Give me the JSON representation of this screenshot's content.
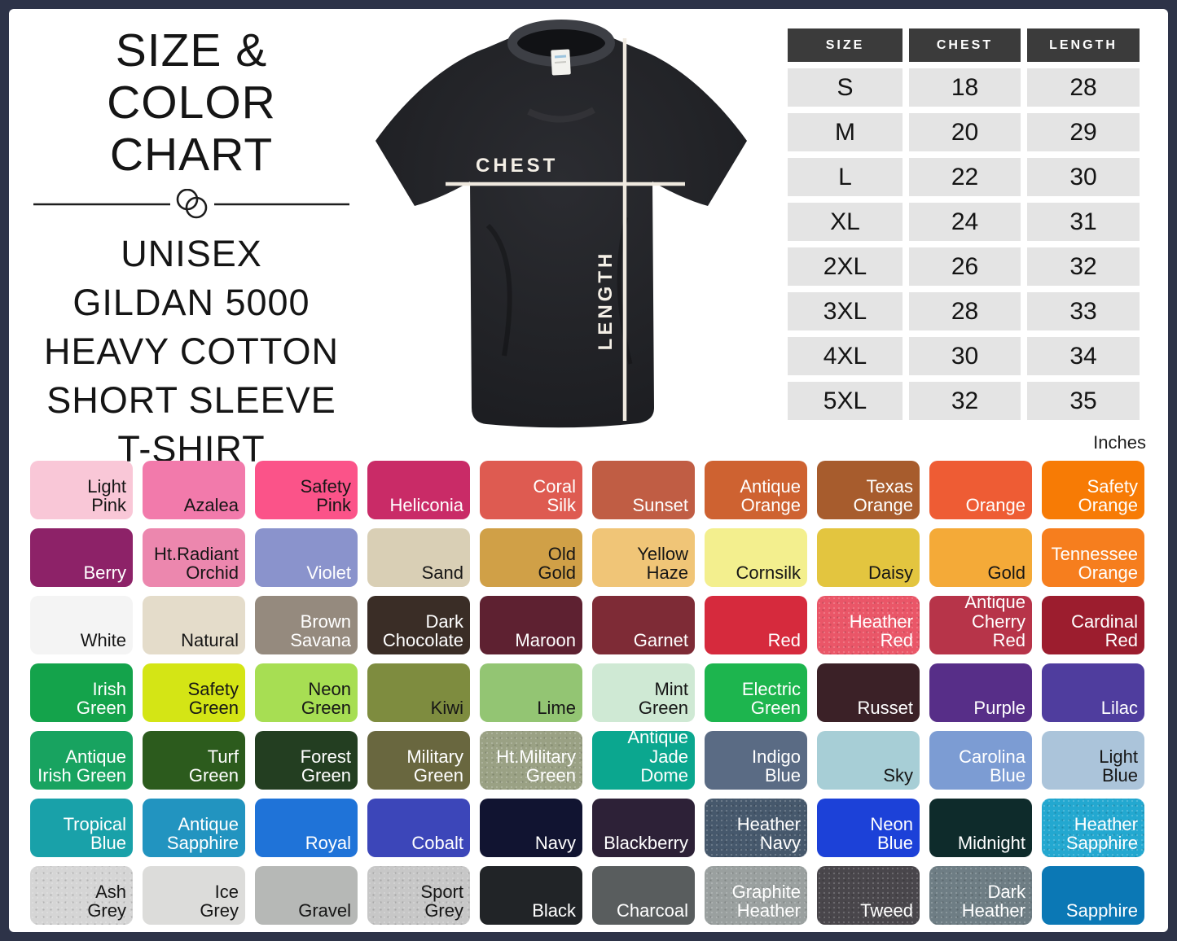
{
  "theme": {
    "frame_bg": "#2d3348",
    "table_header_bg": "#3b3b3b",
    "table_header_text": "#ffffff",
    "table_cell_bg": "#e4e4e4",
    "table_cell_text": "#141414",
    "swatch_text_dark": "#161616",
    "swatch_text_light": "#ffffff",
    "shirt_color": "#212226",
    "measure_line": "#efe9df"
  },
  "header": {
    "title_line1": "SIZE & COLOR",
    "title_line2": "CHART",
    "subtitle_lines": [
      "UNISEX",
      "GILDAN 5000",
      "HEAVY COTTON",
      "SHORT SLEEVE",
      "T-SHIRT"
    ]
  },
  "shirt_diagram": {
    "chest_label": "CHEST",
    "length_label": "LENGTH"
  },
  "size_table": {
    "headers": [
      "SIZE",
      "CHEST",
      "LENGTH"
    ],
    "rows": [
      [
        "S",
        "18",
        "28"
      ],
      [
        "M",
        "20",
        "29"
      ],
      [
        "L",
        "22",
        "30"
      ],
      [
        "XL",
        "24",
        "31"
      ],
      [
        "2XL",
        "26",
        "32"
      ],
      [
        "3XL",
        "28",
        "33"
      ],
      [
        "4XL",
        "30",
        "34"
      ],
      [
        "5XL",
        "32",
        "35"
      ]
    ],
    "unit_label": "Inches"
  },
  "color_chart": {
    "swatches": [
      {
        "name": "Light\nPink",
        "hex": "#f9c7d7",
        "text": "dark",
        "heather": false
      },
      {
        "name": "Azalea",
        "hex": "#f27aab",
        "text": "dark",
        "heather": false
      },
      {
        "name": "Safety\nPink",
        "hex": "#fb5389",
        "text": "dark",
        "heather": false
      },
      {
        "name": "Heliconia",
        "hex": "#c92b67",
        "text": "light",
        "heather": false
      },
      {
        "name": "Coral\nSilk",
        "hex": "#de5b51",
        "text": "light",
        "heather": false
      },
      {
        "name": "Sunset",
        "hex": "#c05d44",
        "text": "light",
        "heather": false
      },
      {
        "name": "Antique\nOrange",
        "hex": "#ce6231",
        "text": "light",
        "heather": false
      },
      {
        "name": "Texas\nOrange",
        "hex": "#a75c2d",
        "text": "light",
        "heather": false
      },
      {
        "name": "Orange",
        "hex": "#ee5c34",
        "text": "light",
        "heather": false
      },
      {
        "name": "Safety\nOrange",
        "hex": "#f77b05",
        "text": "light",
        "heather": false
      },
      {
        "name": "Berry",
        "hex": "#8d2268",
        "text": "light",
        "heather": false
      },
      {
        "name": "Ht.Radiant\nOrchid",
        "hex": "#ec87ae",
        "text": "dark",
        "heather": false
      },
      {
        "name": "Violet",
        "hex": "#8a93cc",
        "text": "light",
        "heather": false
      },
      {
        "name": "Sand",
        "hex": "#d9cfb5",
        "text": "dark",
        "heather": false
      },
      {
        "name": "Old\nGold",
        "hex": "#d0a047",
        "text": "dark",
        "heather": false
      },
      {
        "name": "Yellow\nHaze",
        "hex": "#f0c577",
        "text": "dark",
        "heather": false
      },
      {
        "name": "Cornsilk",
        "hex": "#f3ef8e",
        "text": "dark",
        "heather": false
      },
      {
        "name": "Daisy",
        "hex": "#e3c53f",
        "text": "dark",
        "heather": false
      },
      {
        "name": "Gold",
        "hex": "#f4aa38",
        "text": "dark",
        "heather": false
      },
      {
        "name": "Tennessee\nOrange",
        "hex": "#f67e1e",
        "text": "light",
        "heather": false
      },
      {
        "name": "White",
        "hex": "#f4f4f4",
        "text": "dark",
        "heather": false
      },
      {
        "name": "Natural",
        "hex": "#e4dcca",
        "text": "dark",
        "heather": false
      },
      {
        "name": "Brown\nSavana",
        "hex": "#958a7e",
        "text": "light",
        "heather": false
      },
      {
        "name": "Dark\nChocolate",
        "hex": "#3a2d26",
        "text": "light",
        "heather": false
      },
      {
        "name": "Maroon",
        "hex": "#5e2131",
        "text": "light",
        "heather": false
      },
      {
        "name": "Garnet",
        "hex": "#7e2b36",
        "text": "light",
        "heather": false
      },
      {
        "name": "Red",
        "hex": "#d62a3d",
        "text": "light",
        "heather": false
      },
      {
        "name": "Heather\nRed",
        "hex": "#ea5668",
        "text": "light",
        "heather": true
      },
      {
        "name": "Antique\nCherry Red",
        "hex": "#b73449",
        "text": "light",
        "heather": false
      },
      {
        "name": "Cardinal\nRed",
        "hex": "#9c1d2e",
        "text": "light",
        "heather": false
      },
      {
        "name": "Irish\nGreen",
        "hex": "#14a34b",
        "text": "light",
        "heather": false
      },
      {
        "name": "Safety\nGreen",
        "hex": "#d4e515",
        "text": "dark",
        "heather": false
      },
      {
        "name": "Neon\nGreen",
        "hex": "#a7de53",
        "text": "dark",
        "heather": false
      },
      {
        "name": "Kiwi",
        "hex": "#7e8c3f",
        "text": "dark",
        "heather": false
      },
      {
        "name": "Lime",
        "hex": "#93c573",
        "text": "dark",
        "heather": false
      },
      {
        "name": "Mint\nGreen",
        "hex": "#cfe9d4",
        "text": "dark",
        "heather": false
      },
      {
        "name": "Electric\nGreen",
        "hex": "#1db54e",
        "text": "light",
        "heather": false
      },
      {
        "name": "Russet",
        "hex": "#3b2127",
        "text": "light",
        "heather": false
      },
      {
        "name": "Purple",
        "hex": "#572e88",
        "text": "light",
        "heather": false
      },
      {
        "name": "Lilac",
        "hex": "#4f3d9e",
        "text": "light",
        "heather": false
      },
      {
        "name": "Antique\nIrish Green",
        "hex": "#18a360",
        "text": "light",
        "heather": false
      },
      {
        "name": "Turf\nGreen",
        "hex": "#2c5b1d",
        "text": "light",
        "heather": false
      },
      {
        "name": "Forest\nGreen",
        "hex": "#233e21",
        "text": "light",
        "heather": false
      },
      {
        "name": "Military\nGreen",
        "hex": "#69673f",
        "text": "light",
        "heather": false
      },
      {
        "name": "Ht.Military\nGreen",
        "hex": "#9aa184",
        "text": "light",
        "heather": true
      },
      {
        "name": "Antique\nJade Dome",
        "hex": "#0ba78f",
        "text": "light",
        "heather": false
      },
      {
        "name": "Indigo\nBlue",
        "hex": "#5a6b84",
        "text": "light",
        "heather": false
      },
      {
        "name": "Sky",
        "hex": "#a7ced6",
        "text": "dark",
        "heather": false
      },
      {
        "name": "Carolina\nBlue",
        "hex": "#7c9cd3",
        "text": "light",
        "heather": false
      },
      {
        "name": "Light\nBlue",
        "hex": "#abc4da",
        "text": "dark",
        "heather": false
      },
      {
        "name": "Tropical\nBlue",
        "hex": "#19a1a9",
        "text": "light",
        "heather": false
      },
      {
        "name": "Antique\nSapphire",
        "hex": "#2294c0",
        "text": "light",
        "heather": false
      },
      {
        "name": "Royal",
        "hex": "#1f73d8",
        "text": "light",
        "heather": false
      },
      {
        "name": "Cobalt",
        "hex": "#3c46b9",
        "text": "light",
        "heather": false
      },
      {
        "name": "Navy",
        "hex": "#111431",
        "text": "light",
        "heather": false
      },
      {
        "name": "Blackberry",
        "hex": "#2d2137",
        "text": "light",
        "heather": false
      },
      {
        "name": "Heather\nNavy",
        "hex": "#46586c",
        "text": "light",
        "heather": true
      },
      {
        "name": "Neon\nBlue",
        "hex": "#1c41d8",
        "text": "light",
        "heather": false
      },
      {
        "name": "Midnight",
        "hex": "#0e2b2b",
        "text": "light",
        "heather": false
      },
      {
        "name": "Heather\nSapphire",
        "hex": "#23a8d0",
        "text": "light",
        "heather": true
      },
      {
        "name": "Ash\nGrey",
        "hex": "#d5d5d5",
        "text": "dark",
        "heather": true
      },
      {
        "name": "Ice\nGrey",
        "hex": "#dcdcda",
        "text": "dark",
        "heather": false
      },
      {
        "name": "Gravel",
        "hex": "#b6b8b6",
        "text": "dark",
        "heather": false
      },
      {
        "name": "Sport\nGrey",
        "hex": "#c7c7c7",
        "text": "dark",
        "heather": true
      },
      {
        "name": "Black",
        "hex": "#212427",
        "text": "light",
        "heather": false
      },
      {
        "name": "Charcoal",
        "hex": "#595d5e",
        "text": "light",
        "heather": false
      },
      {
        "name": "Graphite\nHeather",
        "hex": "#9aa09f",
        "text": "light",
        "heather": true
      },
      {
        "name": "Tweed",
        "hex": "#49464b",
        "text": "light",
        "heather": true
      },
      {
        "name": "Dark\nHeather",
        "hex": "#6e7d84",
        "text": "light",
        "heather": true
      },
      {
        "name": "Sapphire",
        "hex": "#0b78b5",
        "text": "light",
        "heather": false
      }
    ]
  }
}
